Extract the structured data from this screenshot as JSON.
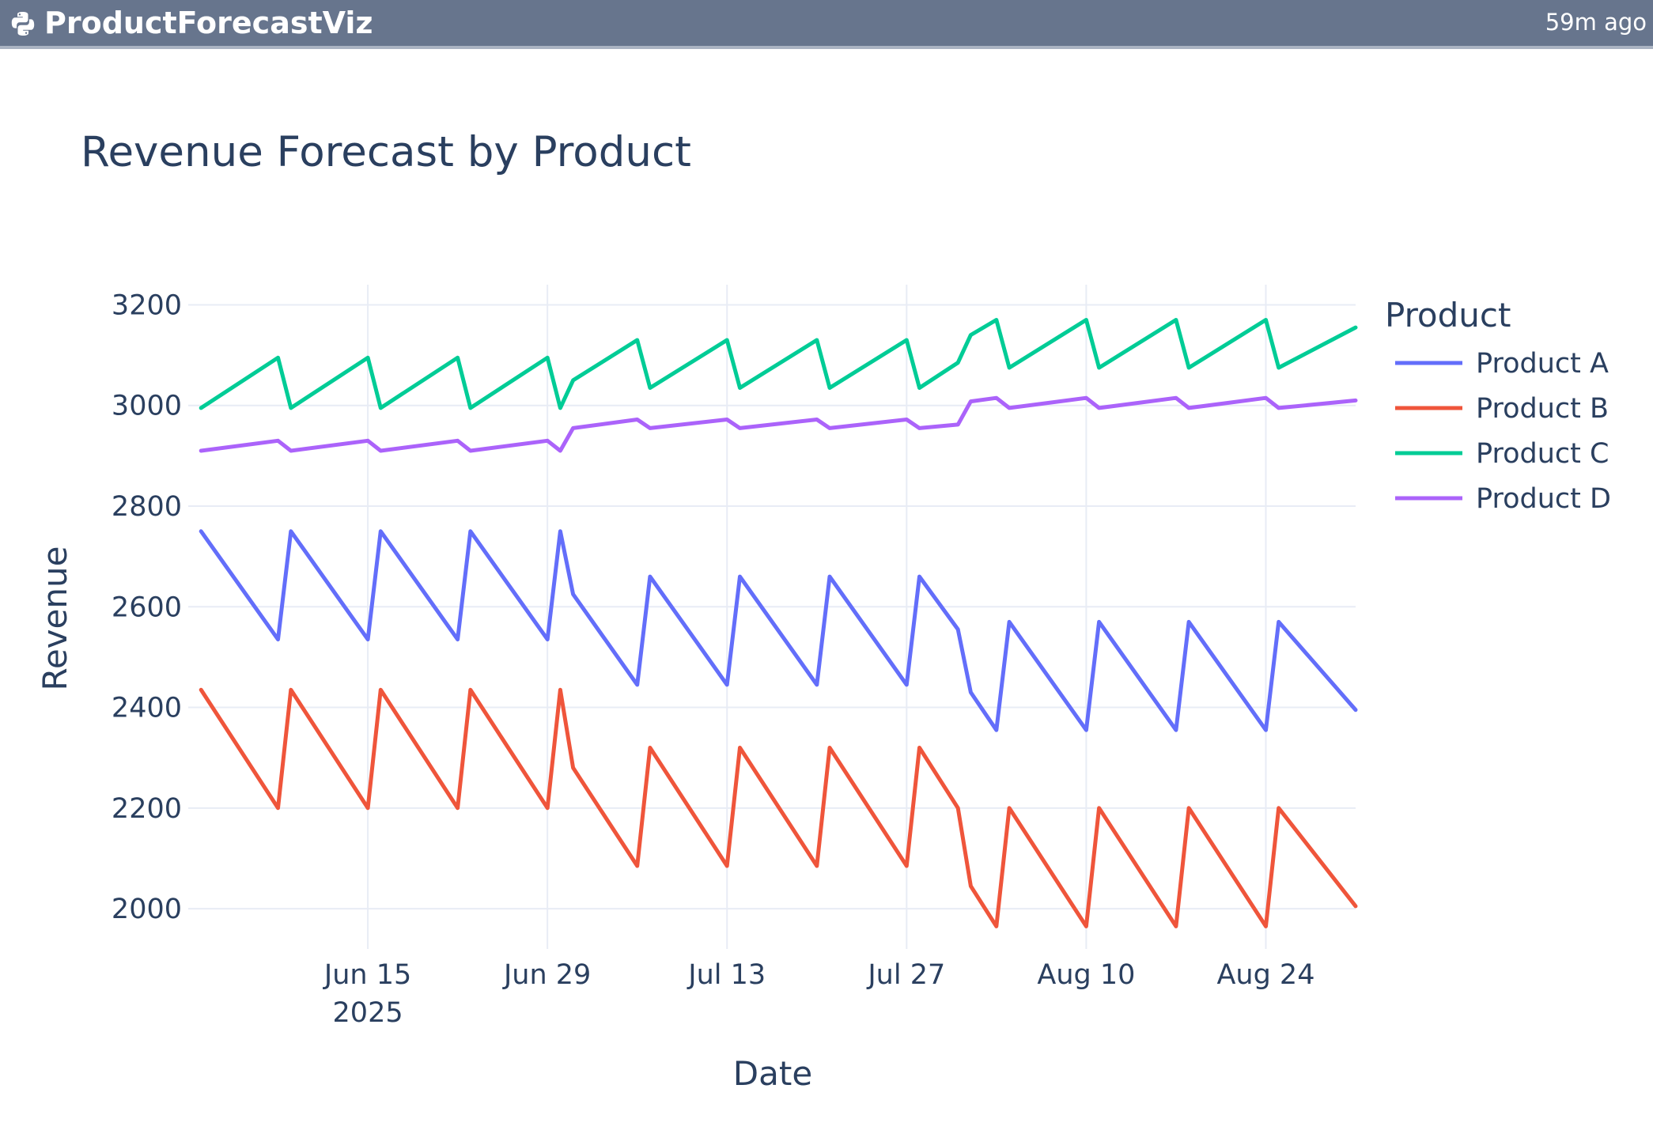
{
  "app": {
    "title": "ProductForecastViz",
    "time_ago": "59m ago",
    "icon": "python-icon"
  },
  "chart_data": {
    "type": "line",
    "title": "Revenue Forecast by Product",
    "xlabel": "Date",
    "ylabel": "Revenue",
    "legend_title": "Product",
    "legend_position": "right",
    "grid": true,
    "xlim": [
      "2025-06-01",
      "2025-08-31"
    ],
    "ylim": [
      1920,
      3240
    ],
    "y_ticks": [
      2000,
      2200,
      2400,
      2600,
      2800,
      3000,
      3200
    ],
    "x_ticks": [
      {
        "date": "2025-06-15",
        "label": "Jun 15",
        "sublabel": "2025"
      },
      {
        "date": "2025-06-29",
        "label": "Jun 29"
      },
      {
        "date": "2025-07-13",
        "label": "Jul 13"
      },
      {
        "date": "2025-07-27",
        "label": "Jul 27"
      },
      {
        "date": "2025-08-10",
        "label": "Aug 10"
      },
      {
        "date": "2025-08-24",
        "label": "Aug 24"
      }
    ],
    "series": [
      {
        "name": "Product A",
        "color": "#636efa",
        "points": [
          [
            "2025-06-02",
            2750
          ],
          [
            "2025-06-08",
            2535
          ],
          [
            "2025-06-09",
            2750
          ],
          [
            "2025-06-15",
            2535
          ],
          [
            "2025-06-16",
            2750
          ],
          [
            "2025-06-22",
            2535
          ],
          [
            "2025-06-23",
            2750
          ],
          [
            "2025-06-29",
            2535
          ],
          [
            "2025-06-30",
            2750
          ],
          [
            "2025-07-01",
            2625
          ],
          [
            "2025-07-06",
            2445
          ],
          [
            "2025-07-07",
            2660
          ],
          [
            "2025-07-13",
            2445
          ],
          [
            "2025-07-14",
            2660
          ],
          [
            "2025-07-20",
            2445
          ],
          [
            "2025-07-21",
            2660
          ],
          [
            "2025-07-27",
            2445
          ],
          [
            "2025-07-28",
            2660
          ],
          [
            "2025-07-31",
            2555
          ],
          [
            "2025-08-01",
            2430
          ],
          [
            "2025-08-03",
            2355
          ],
          [
            "2025-08-04",
            2570
          ],
          [
            "2025-08-10",
            2355
          ],
          [
            "2025-08-11",
            2570
          ],
          [
            "2025-08-17",
            2355
          ],
          [
            "2025-08-18",
            2570
          ],
          [
            "2025-08-24",
            2355
          ],
          [
            "2025-08-25",
            2570
          ],
          [
            "2025-08-31",
            2395
          ]
        ]
      },
      {
        "name": "Product B",
        "color": "#ef553b",
        "points": [
          [
            "2025-06-02",
            2435
          ],
          [
            "2025-06-08",
            2200
          ],
          [
            "2025-06-09",
            2435
          ],
          [
            "2025-06-15",
            2200
          ],
          [
            "2025-06-16",
            2435
          ],
          [
            "2025-06-22",
            2200
          ],
          [
            "2025-06-23",
            2435
          ],
          [
            "2025-06-29",
            2200
          ],
          [
            "2025-06-30",
            2435
          ],
          [
            "2025-07-01",
            2280
          ],
          [
            "2025-07-06",
            2085
          ],
          [
            "2025-07-07",
            2320
          ],
          [
            "2025-07-13",
            2085
          ],
          [
            "2025-07-14",
            2320
          ],
          [
            "2025-07-20",
            2085
          ],
          [
            "2025-07-21",
            2320
          ],
          [
            "2025-07-27",
            2085
          ],
          [
            "2025-07-28",
            2320
          ],
          [
            "2025-07-31",
            2200
          ],
          [
            "2025-08-01",
            2045
          ],
          [
            "2025-08-03",
            1965
          ],
          [
            "2025-08-04",
            2200
          ],
          [
            "2025-08-10",
            1965
          ],
          [
            "2025-08-11",
            2200
          ],
          [
            "2025-08-17",
            1965
          ],
          [
            "2025-08-18",
            2200
          ],
          [
            "2025-08-24",
            1965
          ],
          [
            "2025-08-25",
            2200
          ],
          [
            "2025-08-31",
            2005
          ]
        ]
      },
      {
        "name": "Product C",
        "color": "#00cc96",
        "points": [
          [
            "2025-06-02",
            2995
          ],
          [
            "2025-06-08",
            3095
          ],
          [
            "2025-06-09",
            2995
          ],
          [
            "2025-06-15",
            3095
          ],
          [
            "2025-06-16",
            2995
          ],
          [
            "2025-06-22",
            3095
          ],
          [
            "2025-06-23",
            2995
          ],
          [
            "2025-06-29",
            3095
          ],
          [
            "2025-06-30",
            2995
          ],
          [
            "2025-07-01",
            3050
          ],
          [
            "2025-07-06",
            3130
          ],
          [
            "2025-07-07",
            3035
          ],
          [
            "2025-07-13",
            3130
          ],
          [
            "2025-07-14",
            3035
          ],
          [
            "2025-07-20",
            3130
          ],
          [
            "2025-07-21",
            3035
          ],
          [
            "2025-07-27",
            3130
          ],
          [
            "2025-07-28",
            3035
          ],
          [
            "2025-07-31",
            3085
          ],
          [
            "2025-08-01",
            3140
          ],
          [
            "2025-08-03",
            3170
          ],
          [
            "2025-08-04",
            3075
          ],
          [
            "2025-08-10",
            3170
          ],
          [
            "2025-08-11",
            3075
          ],
          [
            "2025-08-17",
            3170
          ],
          [
            "2025-08-18",
            3075
          ],
          [
            "2025-08-24",
            3170
          ],
          [
            "2025-08-25",
            3075
          ],
          [
            "2025-08-31",
            3155
          ]
        ]
      },
      {
        "name": "Product D",
        "color": "#ab63fa",
        "points": [
          [
            "2025-06-02",
            2910
          ],
          [
            "2025-06-08",
            2930
          ],
          [
            "2025-06-09",
            2910
          ],
          [
            "2025-06-15",
            2930
          ],
          [
            "2025-06-16",
            2910
          ],
          [
            "2025-06-22",
            2930
          ],
          [
            "2025-06-23",
            2910
          ],
          [
            "2025-06-29",
            2930
          ],
          [
            "2025-06-30",
            2910
          ],
          [
            "2025-07-01",
            2955
          ],
          [
            "2025-07-06",
            2972
          ],
          [
            "2025-07-07",
            2955
          ],
          [
            "2025-07-13",
            2972
          ],
          [
            "2025-07-14",
            2955
          ],
          [
            "2025-07-20",
            2972
          ],
          [
            "2025-07-21",
            2955
          ],
          [
            "2025-07-27",
            2972
          ],
          [
            "2025-07-28",
            2955
          ],
          [
            "2025-07-31",
            2962
          ],
          [
            "2025-08-01",
            3008
          ],
          [
            "2025-08-03",
            3015
          ],
          [
            "2025-08-04",
            2995
          ],
          [
            "2025-08-10",
            3015
          ],
          [
            "2025-08-11",
            2995
          ],
          [
            "2025-08-17",
            3015
          ],
          [
            "2025-08-18",
            2995
          ],
          [
            "2025-08-24",
            3015
          ],
          [
            "2025-08-25",
            2995
          ],
          [
            "2025-08-31",
            3010
          ]
        ]
      }
    ]
  }
}
